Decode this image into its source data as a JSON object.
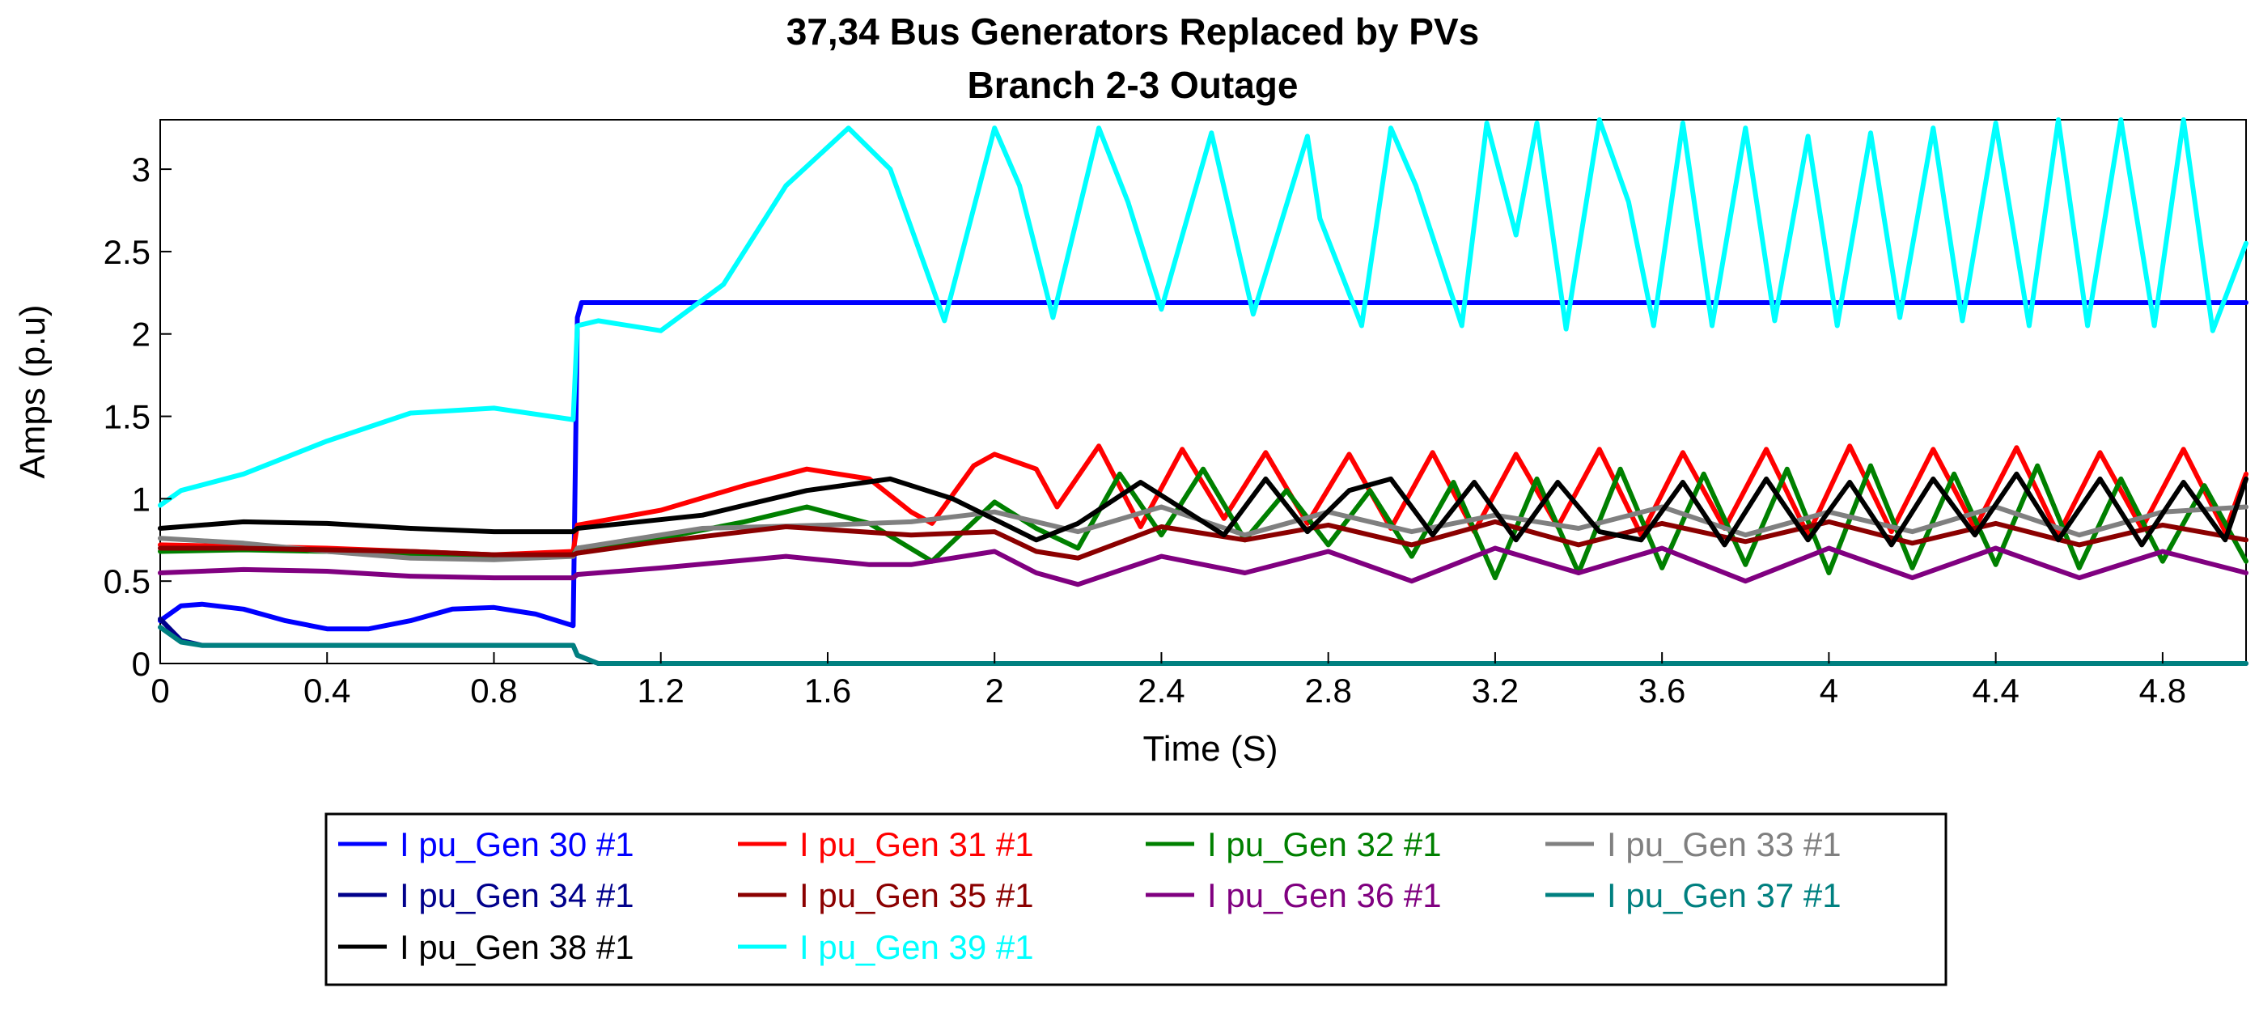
{
  "chart_data": {
    "type": "line",
    "title": "37,34  Bus Generators Replaced by PVs",
    "subtitle": "Branch 2-3 Outage",
    "xlabel": "Time (S)",
    "ylabel": "Amps (p.u)",
    "xlim": [
      0,
      5
    ],
    "ylim": [
      0,
      3.3
    ],
    "x_ticks": [
      {
        "value": 0,
        "label": "0"
      },
      {
        "value": 0.4,
        "label": "0.4"
      },
      {
        "value": 0.8,
        "label": "0.8"
      },
      {
        "value": 1.2,
        "label": "1.2"
      },
      {
        "value": 1.6,
        "label": "1.6"
      },
      {
        "value": 2,
        "label": "2"
      },
      {
        "value": 2.4,
        "label": "2.4"
      },
      {
        "value": 2.8,
        "label": "2.8"
      },
      {
        "value": 3.2,
        "label": "3.2"
      },
      {
        "value": 3.6,
        "label": "3.6"
      },
      {
        "value": 4,
        "label": "4"
      },
      {
        "value": 4.4,
        "label": "4.4"
      },
      {
        "value": 4.8,
        "label": "4.8"
      }
    ],
    "y_ticks": [
      {
        "value": 0,
        "label": "0"
      },
      {
        "value": 0.5,
        "label": "0.5"
      },
      {
        "value": 1,
        "label": "1"
      },
      {
        "value": 1.5,
        "label": "1.5"
      },
      {
        "value": 2,
        "label": "2"
      },
      {
        "value": 2.5,
        "label": "2.5"
      },
      {
        "value": 3,
        "label": "3"
      }
    ],
    "grid": false,
    "legend_position": "bottom",
    "series": [
      {
        "name": "I pu_Gen 30 #1",
        "color": "#0000FF",
        "x": [
          0,
          0.05,
          0.1,
          0.2,
          0.3,
          0.4,
          0.5,
          0.6,
          0.7,
          0.8,
          0.9,
          0.99,
          1.0,
          1.01,
          5.0
        ],
        "y": [
          0.26,
          0.35,
          0.36,
          0.33,
          0.26,
          0.21,
          0.21,
          0.26,
          0.33,
          0.34,
          0.3,
          0.23,
          2.1,
          2.19,
          2.19
        ]
      },
      {
        "name": "I pu_Gen 31 #1",
        "color": "#FF0000",
        "x": [
          0,
          0.2,
          0.4,
          0.6,
          0.8,
          0.99,
          1.0,
          1.2,
          1.4,
          1.55,
          1.7,
          1.8,
          1.85,
          1.95,
          2.0,
          2.1,
          2.15,
          2.25,
          2.35,
          2.45,
          2.55,
          2.65,
          2.75,
          2.85,
          2.95,
          3.05,
          3.15,
          3.25,
          3.35,
          3.45,
          3.55,
          3.65,
          3.75,
          3.85,
          3.95,
          4.05,
          4.15,
          4.25,
          4.35,
          4.45,
          4.55,
          4.65,
          4.75,
          4.85,
          4.95,
          5.0
        ],
        "y": [
          0.72,
          0.71,
          0.7,
          0.68,
          0.66,
          0.68,
          0.84,
          0.93,
          1.08,
          1.18,
          1.12,
          0.92,
          0.85,
          1.2,
          1.27,
          1.18,
          0.95,
          1.32,
          0.83,
          1.3,
          0.88,
          1.28,
          0.85,
          1.27,
          0.82,
          1.28,
          0.8,
          1.27,
          0.83,
          1.3,
          0.78,
          1.28,
          0.82,
          1.3,
          0.78,
          1.32,
          0.8,
          1.3,
          0.82,
          1.31,
          0.78,
          1.28,
          0.82,
          1.3,
          0.8,
          1.15
        ]
      },
      {
        "name": "I pu_Gen 32 #1",
        "color": "#008000",
        "x": [
          0,
          0.2,
          0.4,
          0.6,
          0.8,
          0.99,
          1.0,
          1.2,
          1.4,
          1.55,
          1.7,
          1.85,
          2.0,
          2.1,
          2.2,
          2.3,
          2.4,
          2.5,
          2.6,
          2.7,
          2.8,
          2.9,
          3.0,
          3.1,
          3.2,
          3.3,
          3.4,
          3.5,
          3.6,
          3.7,
          3.8,
          3.9,
          4.0,
          4.1,
          4.2,
          4.3,
          4.4,
          4.5,
          4.6,
          4.7,
          4.8,
          4.9,
          5.0
        ],
        "y": [
          0.68,
          0.69,
          0.68,
          0.66,
          0.64,
          0.66,
          0.7,
          0.76,
          0.86,
          0.95,
          0.85,
          0.62,
          0.98,
          0.82,
          0.7,
          1.15,
          0.78,
          1.18,
          0.75,
          1.05,
          0.72,
          1.05,
          0.65,
          1.1,
          0.52,
          1.12,
          0.55,
          1.18,
          0.58,
          1.15,
          0.6,
          1.18,
          0.55,
          1.2,
          0.58,
          1.15,
          0.6,
          1.2,
          0.58,
          1.12,
          0.62,
          1.08,
          0.62
        ]
      },
      {
        "name": "I pu_Gen 33 #1",
        "color": "#808080",
        "x": [
          0,
          0.2,
          0.4,
          0.6,
          0.8,
          0.99,
          1.0,
          1.3,
          1.6,
          1.8,
          2.0,
          2.2,
          2.4,
          2.6,
          2.8,
          3.0,
          3.2,
          3.4,
          3.6,
          3.8,
          4.0,
          4.2,
          4.4,
          4.6,
          4.8,
          5.0
        ],
        "y": [
          0.76,
          0.73,
          0.68,
          0.64,
          0.63,
          0.65,
          0.7,
          0.82,
          0.84,
          0.86,
          0.92,
          0.8,
          0.95,
          0.78,
          0.92,
          0.8,
          0.9,
          0.82,
          0.95,
          0.78,
          0.92,
          0.8,
          0.95,
          0.78,
          0.92,
          0.95
        ]
      },
      {
        "name": "I pu_Gen 34 #1",
        "color": "#00008B",
        "x": [
          0,
          0.05,
          0.1,
          0.99,
          1.0,
          1.05,
          5.0
        ],
        "y": [
          0.27,
          0.14,
          0.11,
          0.11,
          0.05,
          0.0,
          0.0
        ]
      },
      {
        "name": "I pu_Gen 35 #1",
        "color": "#8B0000",
        "x": [
          0,
          0.2,
          0.4,
          0.6,
          0.8,
          0.99,
          1.0,
          1.2,
          1.5,
          1.8,
          2.0,
          2.1,
          2.2,
          2.4,
          2.6,
          2.8,
          3.0,
          3.2,
          3.4,
          3.6,
          3.8,
          4.0,
          4.2,
          4.4,
          4.6,
          4.8,
          5.0
        ],
        "y": [
          0.7,
          0.7,
          0.69,
          0.68,
          0.66,
          0.66,
          0.67,
          0.74,
          0.83,
          0.78,
          0.8,
          0.68,
          0.64,
          0.83,
          0.75,
          0.84,
          0.72,
          0.86,
          0.72,
          0.85,
          0.74,
          0.86,
          0.73,
          0.85,
          0.72,
          0.84,
          0.75
        ]
      },
      {
        "name": "I pu_Gen 36 #1",
        "color": "#800080",
        "x": [
          0,
          0.2,
          0.4,
          0.6,
          0.8,
          0.99,
          1.0,
          1.2,
          1.5,
          1.7,
          1.8,
          2.0,
          2.1,
          2.2,
          2.4,
          2.6,
          2.8,
          3.0,
          3.2,
          3.4,
          3.6,
          3.8,
          4.0,
          4.2,
          4.4,
          4.6,
          4.8,
          5.0
        ],
        "y": [
          0.55,
          0.57,
          0.56,
          0.53,
          0.52,
          0.52,
          0.54,
          0.58,
          0.65,
          0.6,
          0.6,
          0.68,
          0.55,
          0.48,
          0.65,
          0.55,
          0.68,
          0.5,
          0.7,
          0.55,
          0.7,
          0.5,
          0.7,
          0.52,
          0.7,
          0.52,
          0.68,
          0.55
        ]
      },
      {
        "name": "I pu_Gen 37 #1",
        "color": "#008080",
        "x": [
          0,
          0.05,
          0.1,
          0.99,
          1.0,
          1.05,
          5.0
        ],
        "y": [
          0.22,
          0.13,
          0.11,
          0.11,
          0.05,
          0.0,
          0.0
        ]
      },
      {
        "name": "I pu_Gen 38 #1",
        "color": "#000000",
        "x": [
          0,
          0.2,
          0.4,
          0.6,
          0.8,
          0.99,
          1.0,
          1.3,
          1.55,
          1.75,
          1.9,
          2.1,
          2.2,
          2.35,
          2.55,
          2.65,
          2.75,
          2.85,
          2.95,
          3.05,
          3.15,
          3.25,
          3.35,
          3.45,
          3.55,
          3.65,
          3.75,
          3.85,
          3.95,
          4.05,
          4.15,
          4.25,
          4.35,
          4.45,
          4.55,
          4.65,
          4.75,
          4.85,
          4.95,
          5.0
        ],
        "y": [
          0.82,
          0.86,
          0.85,
          0.82,
          0.8,
          0.8,
          0.82,
          0.9,
          1.05,
          1.12,
          1.0,
          0.75,
          0.85,
          1.1,
          0.78,
          1.12,
          0.8,
          1.05,
          1.12,
          0.78,
          1.1,
          0.75,
          1.1,
          0.8,
          0.75,
          1.1,
          0.72,
          1.12,
          0.75,
          1.1,
          0.72,
          1.12,
          0.78,
          1.15,
          0.75,
          1.12,
          0.72,
          1.1,
          0.75,
          1.12
        ]
      },
      {
        "name": "I pu_Gen 39 #1",
        "color": "#00FFFF",
        "x": [
          0,
          0.05,
          0.2,
          0.4,
          0.6,
          0.8,
          0.99,
          1.0,
          1.05,
          1.2,
          1.35,
          1.5,
          1.65,
          1.75,
          1.88,
          2.0,
          2.06,
          2.14,
          2.25,
          2.32,
          2.4,
          2.52,
          2.62,
          2.75,
          2.78,
          2.88,
          2.95,
          3.01,
          3.12,
          3.18,
          3.25,
          3.3,
          3.37,
          3.45,
          3.52,
          3.58,
          3.65,
          3.72,
          3.8,
          3.87,
          3.95,
          4.02,
          4.1,
          4.17,
          4.25,
          4.32,
          4.4,
          4.48,
          4.55,
          4.62,
          4.7,
          4.78,
          4.85,
          4.92,
          5.0
        ],
        "y": [
          0.96,
          1.05,
          1.15,
          1.35,
          1.52,
          1.55,
          1.48,
          2.05,
          2.08,
          2.02,
          2.3,
          2.9,
          3.25,
          3.0,
          2.08,
          3.25,
          2.9,
          2.1,
          3.25,
          2.8,
          2.15,
          3.22,
          2.12,
          3.2,
          2.7,
          2.05,
          3.25,
          2.9,
          2.05,
          3.28,
          2.6,
          3.28,
          2.03,
          3.3,
          2.8,
          2.05,
          3.28,
          2.05,
          3.25,
          2.08,
          3.2,
          2.05,
          3.22,
          2.1,
          3.25,
          2.08,
          3.28,
          2.05,
          3.3,
          2.05,
          3.3,
          2.05,
          3.3,
          2.02,
          2.55
        ]
      }
    ]
  },
  "legend": {
    "entries": [
      {
        "label": "I pu_Gen 30 #1",
        "color": "#0000FF"
      },
      {
        "label": "I pu_Gen 31 #1",
        "color": "#FF0000"
      },
      {
        "label": "I pu_Gen 32 #1",
        "color": "#008000"
      },
      {
        "label": "I pu_Gen 33 #1",
        "color": "#808080"
      },
      {
        "label": "I pu_Gen 34 #1",
        "color": "#00008B"
      },
      {
        "label": "I pu_Gen 35 #1",
        "color": "#8B0000"
      },
      {
        "label": "I pu_Gen 36 #1",
        "color": "#800080"
      },
      {
        "label": "I pu_Gen 37 #1",
        "color": "#008080"
      },
      {
        "label": "I pu_Gen 38 #1",
        "color": "#000000"
      },
      {
        "label": "I pu_Gen 39 #1",
        "color": "#00FFFF"
      }
    ]
  }
}
